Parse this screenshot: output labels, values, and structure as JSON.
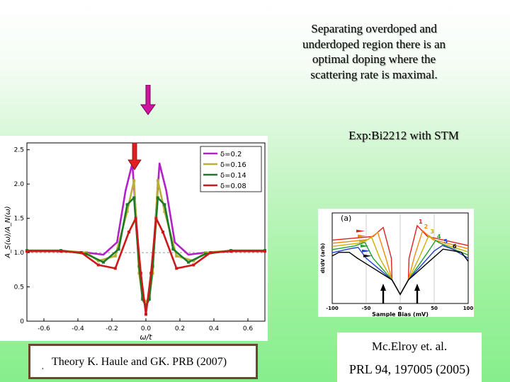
{
  "caption": [
    "Separating overdoped and",
    "underdoped region there is an",
    "optimal doping where the",
    "scattering rate is maximal."
  ],
  "exp_label": "Exp:Bi2212 with STM",
  "theory_mark": ",",
  "theory_ref": "Theory K. Haule and GK. PRB (2007)",
  "exp_ref_line1": "Mc.Elroy et. al.",
  "exp_ref_line2": "PRL 94, 197005 (2005)",
  "colors": {
    "arrow_purple": "#d0149f",
    "arrow_red": "#e02020"
  },
  "chart_data": [
    {
      "type": "line",
      "xlabel": "ω/t",
      "ylabel": "A_S(ω)/A_N(ω)",
      "xlim": [
        -0.7,
        0.7
      ],
      "ylim": [
        0,
        2.6
      ],
      "xticks": [
        -0.6,
        -0.4,
        -0.2,
        0.0,
        0.2,
        0.4,
        0.6
      ],
      "xtick_labels": [
        "-0.6",
        "-0.4",
        "-0.2",
        "0.0",
        "0.2",
        "0.4",
        "0.6"
      ],
      "yticks": [
        0,
        0.5,
        1.0,
        1.5,
        2.0,
        2.5
      ],
      "ytick_labels": [
        "0",
        "0.5",
        "1.0",
        "1.5",
        "2.0",
        "2.5"
      ],
      "legend_position": "top-right",
      "series": [
        {
          "name": "δ=0.2",
          "color": "#b220c8",
          "marker": "none",
          "x": [
            -0.7,
            -0.5,
            -0.35,
            -0.25,
            -0.17,
            -0.12,
            -0.08,
            -0.04,
            -0.02,
            0,
            0.02,
            0.04,
            0.08,
            0.12,
            0.17,
            0.25,
            0.35,
            0.5,
            0.7
          ],
          "y": [
            1.02,
            1.02,
            1.0,
            0.97,
            1.15,
            1.9,
            2.3,
            0.9,
            0.35,
            0.25,
            0.35,
            0.9,
            2.3,
            1.9,
            1.15,
            0.97,
            1.0,
            1.02,
            1.02
          ]
        },
        {
          "name": "δ=0.16",
          "color": "#b8b038",
          "marker": "square",
          "x": [
            -0.7,
            -0.5,
            -0.35,
            -0.28,
            -0.18,
            -0.11,
            -0.07,
            -0.04,
            -0.02,
            0,
            0.02,
            0.04,
            0.07,
            0.11,
            0.18,
            0.28,
            0.35,
            0.5,
            0.7
          ],
          "y": [
            1.03,
            1.03,
            1.0,
            0.88,
            0.95,
            1.6,
            2.05,
            0.7,
            0.35,
            0.28,
            0.35,
            0.7,
            2.05,
            1.6,
            0.95,
            0.88,
            1.0,
            1.03,
            1.03
          ]
        },
        {
          "name": "δ=0.14",
          "color": "#1a7a2a",
          "marker": "square",
          "x": [
            -0.7,
            -0.5,
            -0.35,
            -0.25,
            -0.16,
            -0.11,
            -0.07,
            -0.04,
            -0.02,
            0,
            0.02,
            0.04,
            0.07,
            0.11,
            0.16,
            0.25,
            0.35,
            0.5,
            0.7
          ],
          "y": [
            1.03,
            1.03,
            0.98,
            0.86,
            1.05,
            1.7,
            1.8,
            0.8,
            0.32,
            0.22,
            0.32,
            0.8,
            1.8,
            1.7,
            1.05,
            0.86,
            0.98,
            1.03,
            1.03
          ]
        },
        {
          "name": "δ=0.08",
          "color": "#cc1a1a",
          "marker": "square",
          "x": [
            -0.7,
            -0.5,
            -0.38,
            -0.28,
            -0.18,
            -0.1,
            -0.06,
            -0.03,
            0,
            0.03,
            0.06,
            0.1,
            0.18,
            0.28,
            0.38,
            0.5,
            0.7
          ],
          "y": [
            1.02,
            1.02,
            1.0,
            0.82,
            0.77,
            1.3,
            1.5,
            0.7,
            0.1,
            0.7,
            1.5,
            1.3,
            0.77,
            0.82,
            1.0,
            1.02,
            1.02
          ]
        }
      ]
    },
    {
      "type": "line",
      "panel_label": "(a)",
      "xlabel": "Sample Bias (mV)",
      "ylabel": "dI/dV (arb)",
      "xlim": [
        -100,
        100
      ],
      "xticks": [
        -100,
        -50,
        0,
        50,
        100
      ],
      "xtick_labels": [
        "-100",
        "-50",
        "0",
        "50",
        "100"
      ],
      "curve_labels": [
        "1",
        "2",
        "3",
        "4",
        "5",
        "6"
      ],
      "curve_colors": [
        "#e02020",
        "#f08a10",
        "#c8b000",
        "#20a030",
        "#2040d0",
        "#000000"
      ],
      "peak_mV": [
        25,
        33,
        42,
        52,
        62,
        75
      ]
    }
  ]
}
